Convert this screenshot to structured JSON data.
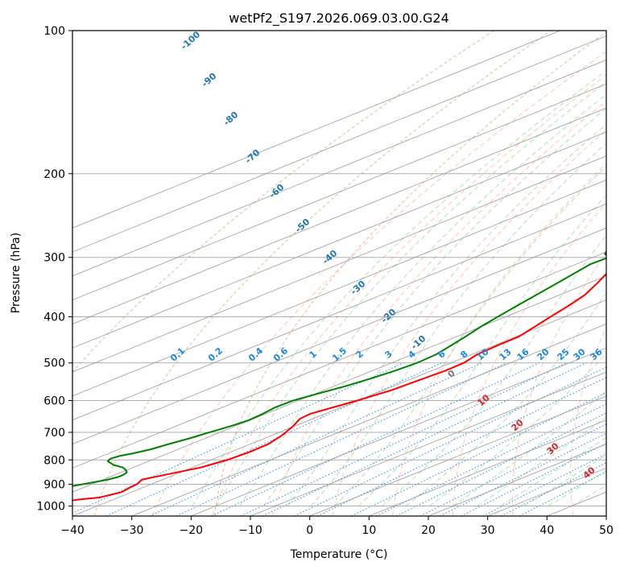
{
  "chart_data": {
    "type": "line",
    "title": "wetPf2_S197.2026.069.03.00.G24",
    "xlabel": "Temperature (°C)",
    "ylabel": "Pressure (hPa)",
    "xlim": [
      -40,
      50
    ],
    "ylim": [
      1050,
      100
    ],
    "x_ticks": [
      -40,
      -30,
      -20,
      -10,
      0,
      10,
      20,
      30,
      40,
      50
    ],
    "y_ticks": [
      100,
      200,
      300,
      400,
      500,
      600,
      700,
      800,
      900,
      1000
    ],
    "skew_deg_per_log": 86,
    "series": [
      {
        "name": "Temperature",
        "color": "#ff0000",
        "points": [
          [
            1000,
            -47.7
          ],
          [
            980,
            -47.5
          ],
          [
            970,
            -46.0
          ],
          [
            960,
            -43.2
          ],
          [
            950,
            -42.6
          ],
          [
            935,
            -41.7
          ],
          [
            915,
            -42.2
          ],
          [
            900,
            -42.4
          ],
          [
            880,
            -43.5
          ],
          [
            860,
            -41.6
          ],
          [
            830,
            -38.6
          ],
          [
            800,
            -37.3
          ],
          [
            770,
            -36.8
          ],
          [
            740,
            -37.0
          ],
          [
            710,
            -38.3
          ],
          [
            680,
            -40.2
          ],
          [
            655,
            -42.2
          ],
          [
            640,
            -42.5
          ],
          [
            600,
            -40.1
          ],
          [
            570,
            -38.6
          ],
          [
            550,
            -38.3
          ],
          [
            520,
            -37.7
          ],
          [
            500,
            -37.8
          ],
          [
            480,
            -39.1
          ],
          [
            460,
            -39.4
          ],
          [
            440,
            -39.5
          ],
          [
            420,
            -40.9
          ],
          [
            400,
            -42.4
          ],
          [
            380,
            -43.9
          ],
          [
            360,
            -45.7
          ],
          [
            340,
            -48.5
          ],
          [
            320,
            -51.7
          ],
          [
            300,
            -56.1
          ],
          [
            290,
            -59.1
          ],
          [
            280,
            -60.3
          ],
          [
            270,
            -58.9
          ],
          [
            260,
            -55.6
          ],
          [
            250,
            -52.6
          ],
          [
            240,
            -49.4
          ],
          [
            230,
            -46.5
          ],
          [
            220,
            -46.6
          ],
          [
            210,
            -46.6
          ],
          [
            200,
            -46.7
          ],
          [
            190,
            -47.2
          ],
          [
            180,
            -47.7
          ],
          [
            170,
            -49.1
          ],
          [
            160,
            -50.0
          ],
          [
            150,
            -50.4
          ],
          [
            140,
            -51.4
          ],
          [
            130,
            -52.2
          ],
          [
            120,
            -54.0
          ],
          [
            110,
            -53.4
          ],
          [
            100,
            -52.8
          ]
        ]
      },
      {
        "name": "Dewpoint",
        "color": "#008000",
        "points": [
          [
            1000,
            -49.7
          ],
          [
            980,
            -51.1
          ],
          [
            960,
            -51.1
          ],
          [
            940,
            -52.4
          ],
          [
            930,
            -53.1
          ],
          [
            920,
            -52.9
          ],
          [
            910,
            -52.7
          ],
          [
            895,
            -50.9
          ],
          [
            880,
            -49.2
          ],
          [
            870,
            -48.6
          ],
          [
            860,
            -48.6
          ],
          [
            850,
            -49.0
          ],
          [
            840,
            -50.2
          ],
          [
            830,
            -51.7
          ],
          [
            820,
            -54.3
          ],
          [
            805,
            -56.9
          ],
          [
            795,
            -57.5
          ],
          [
            785,
            -57.1
          ],
          [
            775,
            -55.9
          ],
          [
            760,
            -54.6
          ],
          [
            740,
            -53.7
          ],
          [
            720,
            -52.6
          ],
          [
            700,
            -51.8
          ],
          [
            680,
            -50.8
          ],
          [
            660,
            -50.2
          ],
          [
            640,
            -50.5
          ],
          [
            620,
            -51.1
          ],
          [
            600,
            -50.9
          ],
          [
            580,
            -49.6
          ],
          [
            560,
            -48.1
          ],
          [
            540,
            -47.0
          ],
          [
            520,
            -46.2
          ],
          [
            500,
            -45.7
          ],
          [
            480,
            -46.0
          ],
          [
            460,
            -47.2
          ],
          [
            440,
            -48.5
          ],
          [
            420,
            -50.0
          ],
          [
            400,
            -51.3
          ],
          [
            380,
            -52.6
          ],
          [
            360,
            -53.9
          ],
          [
            340,
            -55.3
          ],
          [
            320,
            -56.8
          ],
          [
            310,
            -57.6
          ],
          [
            300,
            -57.4
          ],
          [
            295,
            -59.4
          ],
          [
            285,
            -61.7
          ],
          [
            270,
            -64.0
          ],
          [
            255,
            -66.8
          ],
          [
            240,
            -70.3
          ],
          [
            230,
            -74.6
          ],
          [
            223,
            -73.9
          ],
          [
            215,
            -68.0
          ],
          [
            205,
            -64.0
          ],
          [
            195,
            -66.0
          ],
          [
            190,
            -69.0
          ],
          [
            180,
            -70.6
          ],
          [
            170,
            -70.7
          ],
          [
            160,
            -70.8
          ],
          [
            150,
            -71.5
          ],
          [
            140,
            -74.3
          ],
          [
            130,
            -76.0
          ],
          [
            120,
            -78.0
          ],
          [
            110,
            -79.2
          ],
          [
            100,
            -80.2
          ]
        ]
      }
    ],
    "dry_adiabat_labels": [
      "0",
      "10",
      "20",
      "30",
      "40"
    ],
    "moist_adiabat_labels": [
      "-100",
      "-90",
      "-80",
      "-70",
      "-60",
      "-50",
      "-40",
      "-30",
      "-20",
      "-10"
    ],
    "mixing_ratio_labels": [
      "0.1",
      "0.2",
      "0.4",
      "0.6",
      "1",
      "1.5",
      "2",
      "3",
      "4",
      "6",
      "8",
      "10",
      "13",
      "16",
      "20",
      "25",
      "30",
      "36"
    ],
    "colors": {
      "dry_adiabat": "#ff7f50",
      "moist_adiabat": "#2ca02c",
      "mixing_ratio": "#1e88e5",
      "ice_isentrope": "#c8a060",
      "grid": "#999999"
    }
  }
}
